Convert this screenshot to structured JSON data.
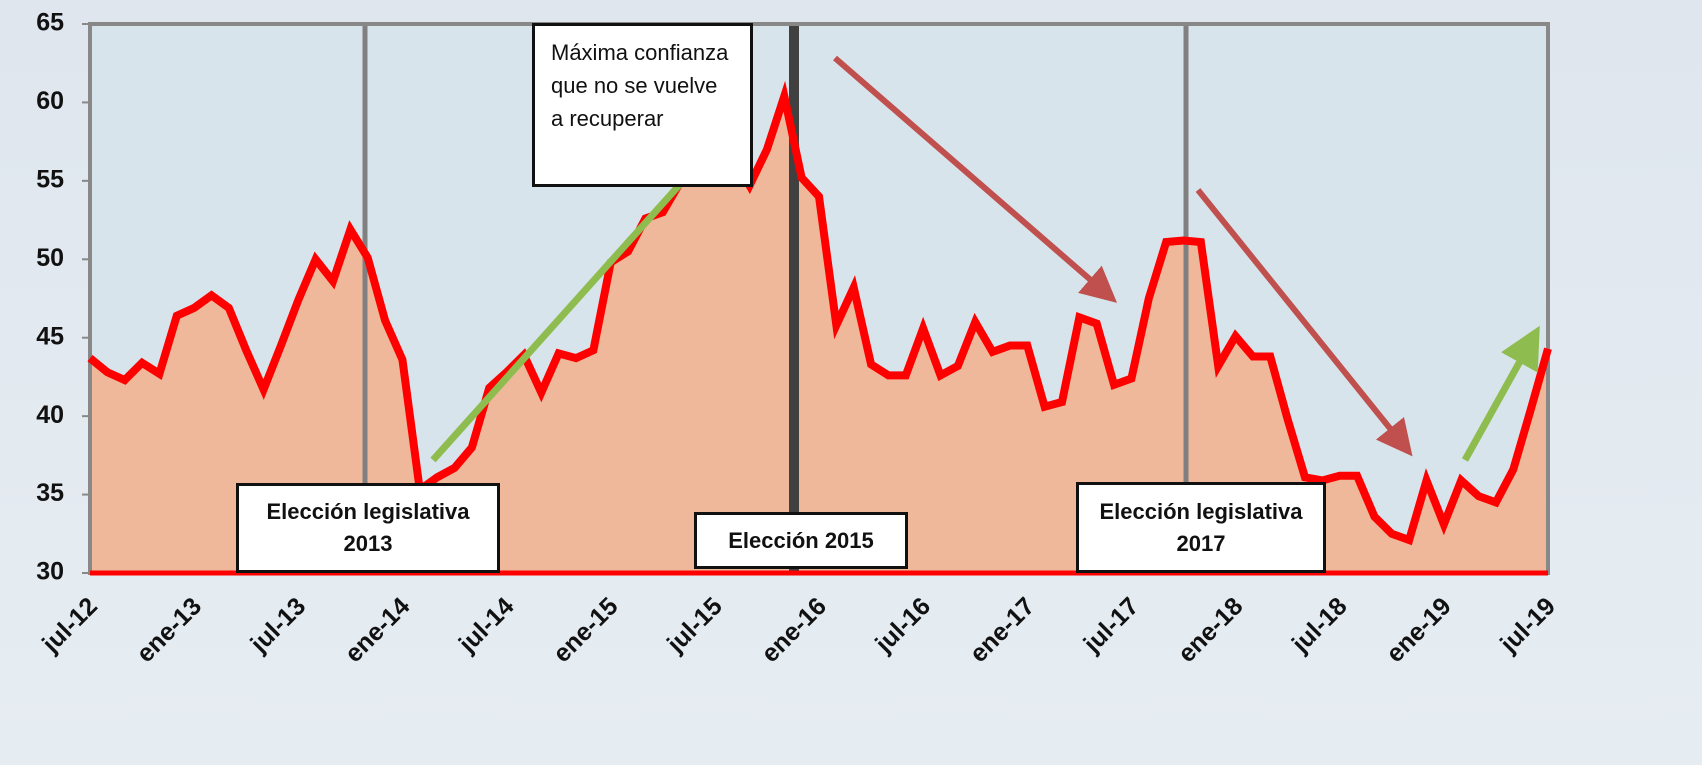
{
  "chart_data": {
    "type": "area-line",
    "categories": [
      "jul-12",
      null,
      null,
      null,
      null,
      null,
      "ene-13",
      null,
      null,
      null,
      null,
      null,
      "jul-13",
      null,
      null,
      null,
      null,
      null,
      "ene-14",
      null,
      null,
      null,
      null,
      null,
      "jul-14",
      null,
      null,
      null,
      null,
      null,
      "ene-15",
      null,
      null,
      null,
      null,
      null,
      "jul-15",
      null,
      null,
      null,
      null,
      null,
      "ene-16",
      null,
      null,
      null,
      null,
      null,
      "jul-16",
      null,
      null,
      null,
      null,
      null,
      "ene-17",
      null,
      null,
      null,
      null,
      null,
      "jul-17",
      null,
      null,
      null,
      null,
      null,
      "ene-18",
      null,
      null,
      null,
      null,
      null,
      "jul-18",
      null,
      null,
      null,
      null,
      null,
      "ene-19",
      null,
      null,
      null,
      null,
      null,
      "jul-19"
    ],
    "values": [
      43.7,
      42.8,
      42.3,
      43.4,
      42.7,
      46.4,
      46.9,
      47.7,
      46.9,
      44.2,
      41.7,
      44.5,
      47.4,
      50,
      48.6,
      51.9,
      50.1,
      46.1,
      43.6,
      35.3,
      36.1,
      36.7,
      38,
      41.8,
      42.8,
      43.9,
      41.5,
      44.0,
      43.7,
      44.2,
      49.8,
      50.5,
      52.6,
      53.0,
      54.9,
      54.9,
      56.0,
      56.6,
      54.7,
      57,
      60.4,
      55.2,
      54.0,
      45.8,
      48.2,
      43.3,
      42.6,
      42.6,
      45.6,
      42.6,
      43.2,
      46.0,
      44.1,
      44.5,
      44.5,
      40.6,
      40.9,
      46.3,
      45.9,
      42,
      42.4,
      47.5,
      51.1,
      51.2,
      51.1,
      43.2,
      45.1,
      43.8,
      43.8,
      39.8,
      36.1,
      35.9,
      36.2,
      36.2,
      33.6,
      32.5,
      32.1,
      35.9,
      33.1,
      35.9,
      34.9,
      34.5,
      36.6,
      40.4,
      44.3
    ],
    "color": "#ff0000",
    "area_color": "#f4b08c",
    "ylim": [
      30,
      65
    ],
    "yticks": [
      30,
      35,
      40,
      45,
      50,
      55,
      60,
      65
    ],
    "annotations": [
      "Elección legislativa 2013",
      "Elección 2015",
      "Elección legislativa 2017",
      "Máxima confianza que no se vuelve a recuperar"
    ]
  }
}
